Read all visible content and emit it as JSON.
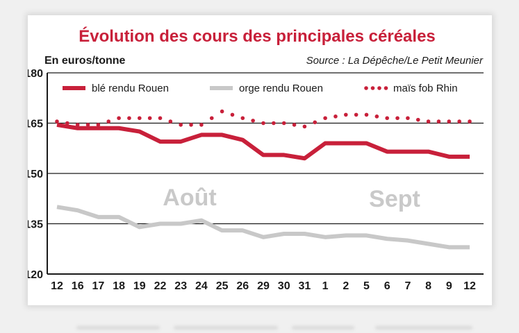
{
  "chart_data": {
    "type": "line",
    "title": "Évolution des cours des principales céréales",
    "ylabel": "En euros/tonne",
    "source": "Source : La Dépêche/Le Petit Meunier",
    "ylim": [
      120,
      180
    ],
    "yticks": [
      "180",
      "165",
      "150",
      "135",
      "120"
    ],
    "grid": "horizontal",
    "legend_position": "top",
    "x": [
      "12",
      "16",
      "17",
      "18",
      "19",
      "22",
      "23",
      "24",
      "25",
      "26",
      "29",
      "30",
      "31",
      "1",
      "2",
      "5",
      "6",
      "7",
      "8",
      "9",
      "12"
    ],
    "month_labels": [
      "Août",
      "Sept"
    ],
    "series": [
      {
        "name": "blé rendu Rouen",
        "color": "#c8203a",
        "style": "solid",
        "values": [
          164.5,
          163.5,
          163.5,
          163.5,
          162.5,
          159.5,
          159.5,
          161.5,
          161.5,
          160,
          155.5,
          155.5,
          154.5,
          159,
          159,
          159,
          156.5,
          156.5,
          156.5,
          155,
          155
        ]
      },
      {
        "name": "orge rendu Rouen",
        "color": "#c8c8c8",
        "style": "solid",
        "values": [
          140,
          139,
          137,
          137,
          134,
          135,
          135,
          136,
          133,
          133,
          131,
          132,
          132,
          131,
          131.5,
          131.5,
          130.5,
          130,
          129,
          128,
          128
        ]
      },
      {
        "name": "maïs fob Rhin",
        "color": "#c8203a",
        "style": "dotted",
        "values": [
          165.5,
          164.5,
          164.5,
          166.5,
          166.5,
          166.5,
          164.5,
          164.5,
          168.5,
          166.5,
          165,
          165,
          164,
          166.5,
          167.5,
          167.5,
          166.5,
          166.5,
          165.5,
          165.5,
          165.5
        ]
      }
    ]
  }
}
